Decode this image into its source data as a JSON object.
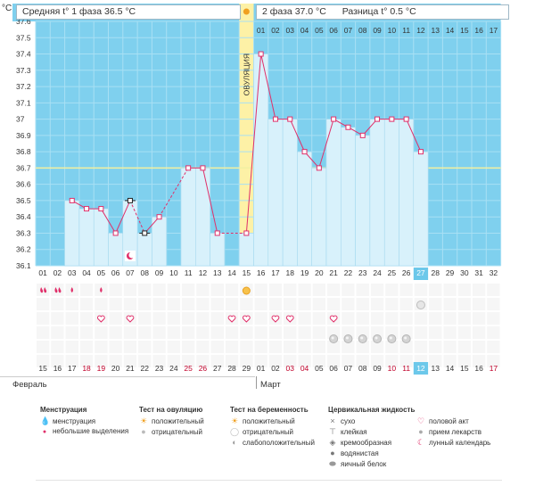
{
  "header": {
    "unit": "°C",
    "phase1_label": "Средняя t° 1 фаза",
    "phase1_value": "36.5 °C",
    "phase2_label": "2 фаза",
    "phase2_value": "37.0 °C",
    "diff_label": "Разница t°",
    "diff_value": "0.5 °C",
    "ovulation_label": "ОВУЛЯЦИЯ",
    "ovulation_icon": "sun-icon"
  },
  "chart_data": {
    "type": "line",
    "title": "",
    "ylabel": "°C",
    "ylim": [
      36.1,
      37.6
    ],
    "yticks": [
      "36.1",
      "36.2",
      "36.3",
      "36.4",
      "36.5",
      "36.6",
      "36.7",
      "36.8",
      "36.9",
      "37",
      "37.1",
      "37.2",
      "37.3",
      "37.4",
      "37.5",
      "37.6"
    ],
    "coverline": 36.7,
    "ovulation_day": 15,
    "today_day": 27,
    "cycle_days": [
      "01",
      "02",
      "03",
      "04",
      "05",
      "06",
      "07",
      "08",
      "09",
      "10",
      "11",
      "12",
      "13",
      "14",
      "15",
      "16",
      "17",
      "18",
      "19",
      "20",
      "21",
      "22",
      "23",
      "24",
      "25",
      "26",
      "27",
      "28",
      "29",
      "30",
      "31",
      "32"
    ],
    "top_day_labels": [
      "",
      "",
      "",
      "",
      "",
      "",
      "",
      "",
      "",
      "",
      "",
      "",
      "",
      "",
      "",
      "01",
      "02",
      "03",
      "04",
      "05",
      "06",
      "07",
      "08",
      "09",
      "10",
      "11",
      "12",
      "13",
      "14",
      "15",
      "16",
      "17"
    ],
    "dates": [
      "15",
      "16",
      "17",
      "18",
      "19",
      "20",
      "21",
      "22",
      "23",
      "24",
      "25",
      "26",
      "27",
      "28",
      "29",
      "01",
      "02",
      "03",
      "04",
      "05",
      "06",
      "07",
      "08",
      "09",
      "10",
      "11",
      "12",
      "13",
      "14",
      "15",
      "16",
      "17"
    ],
    "date_colors": [
      "#333",
      "#333",
      "#333",
      "#c0002a",
      "#c0002a",
      "#333",
      "#333",
      "#333",
      "#333",
      "#333",
      "#c0002a",
      "#c0002a",
      "#333",
      "#333",
      "#333",
      "#333",
      "#333",
      "#c0002a",
      "#c0002a",
      "#333",
      "#333",
      "#333",
      "#333",
      "#333",
      "#c0002a",
      "#c0002a",
      "#ffffff",
      "#333",
      "#333",
      "#333",
      "#333",
      "#c0002a"
    ],
    "temperatures": [
      null,
      null,
      36.5,
      36.45,
      36.45,
      36.3,
      36.5,
      36.3,
      36.4,
      null,
      36.7,
      36.7,
      36.3,
      null,
      36.3,
      37.4,
      37.0,
      37.0,
      36.8,
      36.7,
      37.0,
      36.95,
      36.9,
      37.0,
      37.0,
      37.0,
      36.8,
      null,
      null,
      null,
      null,
      null
    ],
    "disturbed_days": [
      7,
      8
    ],
    "months": [
      "Февраль",
      "Март"
    ],
    "series": [
      {
        "name": "Базальная температура",
        "color": "#e0306a"
      }
    ]
  },
  "markers": {
    "menstruation": [
      1,
      2
    ],
    "spotting": [
      3,
      5
    ],
    "ovulation_positive": [
      15
    ],
    "intercourse": [
      5,
      7,
      14,
      15,
      17,
      18,
      21
    ],
    "medication": [
      27
    ],
    "cm_egg_white": [
      21,
      22,
      23,
      24,
      25,
      26
    ],
    "lunar": [
      7
    ]
  },
  "legend": {
    "menstruation": {
      "title": "Менструация",
      "items": [
        "менструация",
        "небольшие выделения"
      ]
    },
    "ovulation_test": {
      "title": "Тест на овуляцию",
      "items": [
        "положительный",
        "отрицательный"
      ]
    },
    "pregnancy_test": {
      "title": "Тест на беременность",
      "items": [
        "положительный",
        "отрицательный",
        "слабоположительный"
      ]
    },
    "cervical": {
      "title": "Цервикальная жидкость",
      "items": [
        "сухо",
        "клейкая",
        "кремообразная",
        "водянистая",
        "яичный белок"
      ]
    },
    "other": {
      "items": [
        "половой акт",
        "прием лекарств",
        "лунный календарь"
      ]
    },
    "icons": {
      "drop": "drop-icon",
      "heart": "heart-icon",
      "sun": "sun-icon",
      "pill": "pill-icon",
      "moon": "moon-icon"
    }
  }
}
